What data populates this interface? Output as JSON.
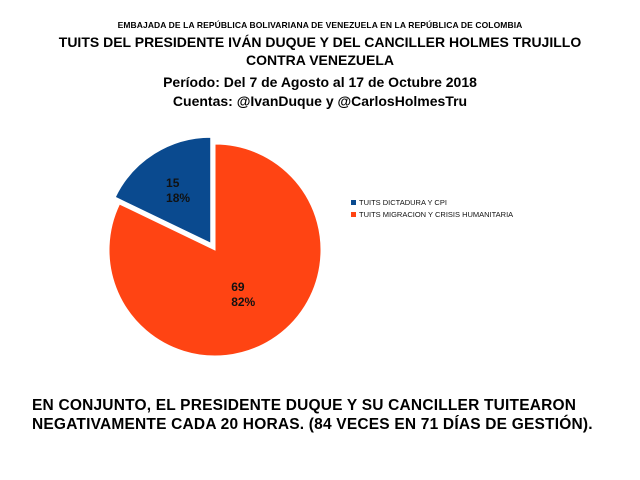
{
  "header": {
    "embassy": "EMBAJADA DE LA REPÚBLICA BOLIVARIANA DE VENEZUELA EN LA REPÚBLICA DE COLOMBIA",
    "title_line1": "TUITS DEL PRESIDENTE IVÁN DUQUE Y DEL CANCILLER HOLMES TRUJILLO",
    "title_line2": "CONTRA VENEZUELA",
    "period": "Período: Del 7 de Agosto al 17 de Octubre 2018",
    "accounts": "Cuentas: @IvanDuque y @CarlosHolmesTru"
  },
  "chart_data": {
    "type": "pie",
    "title": "",
    "legend_position": "right",
    "slices": [
      {
        "label": "TUITS DICTADURA Y CPI",
        "value": 15,
        "percent": "18%",
        "color": "#0a4a8f"
      },
      {
        "label": "TUITS MIGRACION Y CRISIS HUMANITARIA",
        "value": 69,
        "percent": "82%",
        "color": "#ff4413"
      }
    ]
  },
  "conclusion": {
    "text": "EN CONJUNTO, EL PRESIDENTE DUQUE Y SU CANCILLER TUITEARON NEGATIVAMENTE CADA 20 HORAS. (84 VECES EN 71 DÍAS DE GESTIÓN)."
  }
}
